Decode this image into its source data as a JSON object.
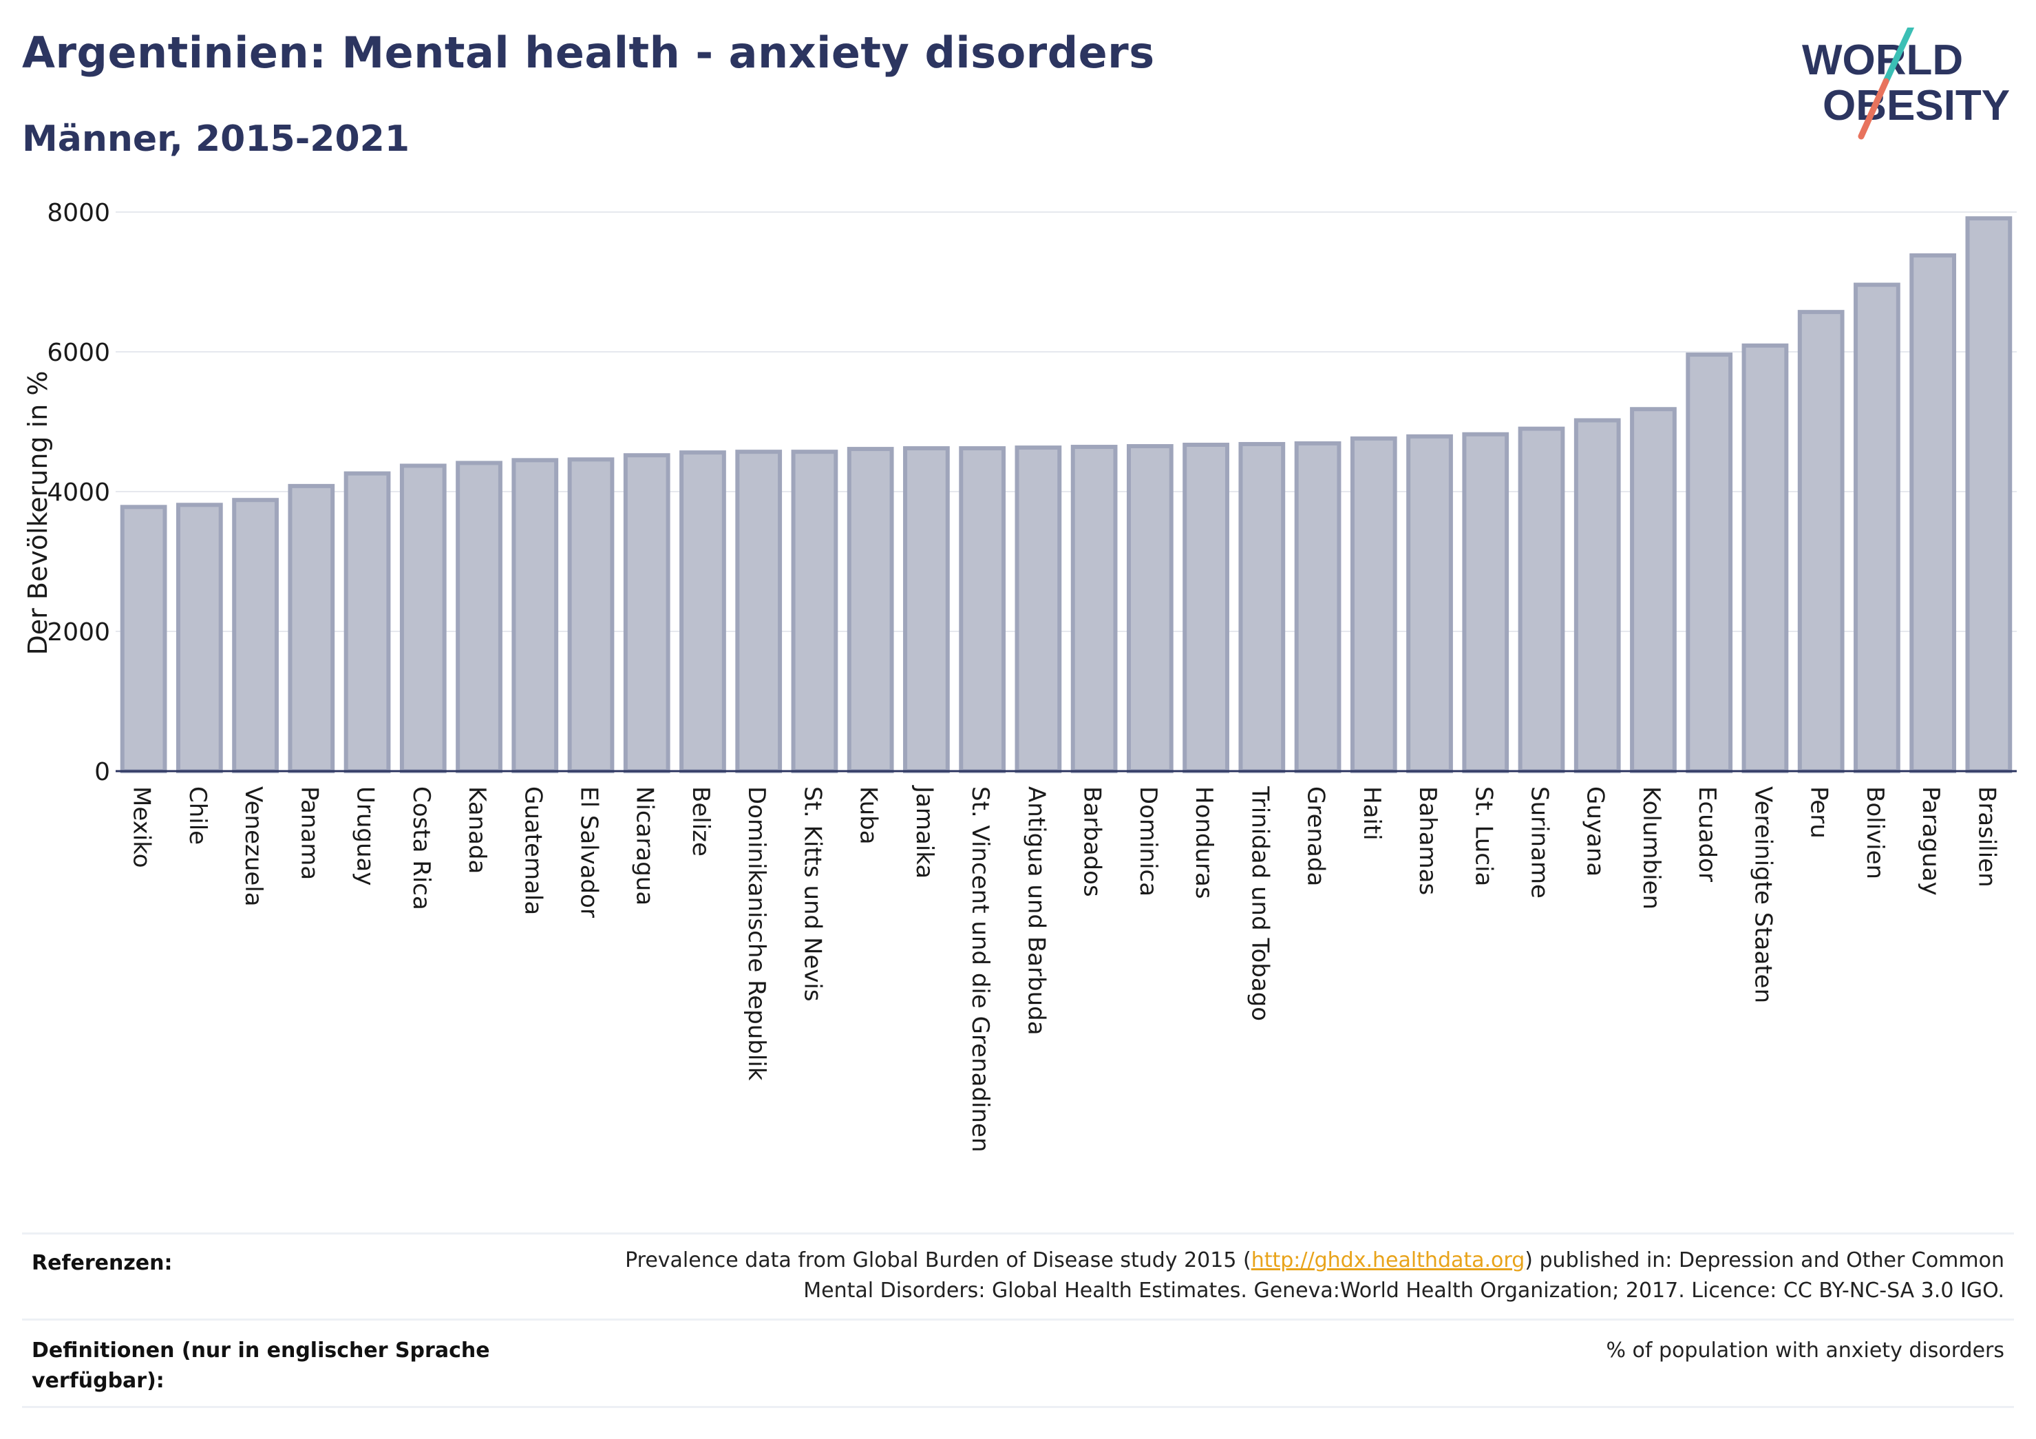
{
  "header": {
    "title": "Argentinien: Mental health - anxiety disorders",
    "subtitle": "Männer, 2015-2021"
  },
  "logo": {
    "line1": "WORLD",
    "line2": "OBESITY"
  },
  "colors": {
    "title": "#2c3560",
    "bar_fill": "#bcc0ce",
    "bar_stroke": "#9fa5bb",
    "grid": "#e6e8ee",
    "logo_navy": "#2c3560",
    "logo_teal": "#3bbfb5",
    "logo_coral": "#e8735d",
    "link": "#e8a31a"
  },
  "chart_data": {
    "type": "bar",
    "ylabel": "Der Bevölkerung in %",
    "xlabel": "",
    "ylim": [
      0,
      8000
    ],
    "yticks": [
      0,
      2000,
      4000,
      6000,
      8000
    ],
    "grid": true,
    "categories": [
      "Mexiko",
      "Chile",
      "Venezuela",
      "Panama",
      "Uruguay",
      "Costa Rica",
      "Kanada",
      "Guatemala",
      "El Salvador",
      "Nicaragua",
      "Belize",
      "Dominikanische Republik",
      "St. Kitts und Nevis",
      "Kuba",
      "Jamaika",
      "St. Vincent und die Grenadinen",
      "Antigua und Barbuda",
      "Barbados",
      "Dominica",
      "Honduras",
      "Trinidad und Tobago",
      "Grenada",
      "Haiti",
      "Bahamas",
      "St. Lucia",
      "Suriname",
      "Guyana",
      "Kolumbien",
      "Ecuador",
      "Vereinigte Staaten",
      "Peru",
      "Bolivien",
      "Paraguay",
      "Brasilien"
    ],
    "values": [
      3780,
      3810,
      3880,
      4080,
      4260,
      4370,
      4410,
      4450,
      4460,
      4520,
      4560,
      4570,
      4570,
      4610,
      4620,
      4620,
      4630,
      4640,
      4650,
      4670,
      4680,
      4690,
      4760,
      4790,
      4820,
      4900,
      5020,
      5180,
      5960,
      6090,
      6570,
      6960,
      7380,
      7910
    ]
  },
  "references": {
    "label": "Referenzen:",
    "text_before": "Prevalence data from Global Burden of Disease study 2015 (",
    "link": "http://ghdx.healthdata.org",
    "text_after": ") published in: Depression and Other Common",
    "line2": "Mental Disorders: Global Health Estimates. Geneva:World Health Organization; 2017. Licence: CC BY-NC-SA 3.0 IGO."
  },
  "definitions": {
    "label_line1": "Definitionen (nur in englischer Sprache",
    "label_line2": "verfügbar):",
    "text": "% of population with anxiety disorders"
  }
}
